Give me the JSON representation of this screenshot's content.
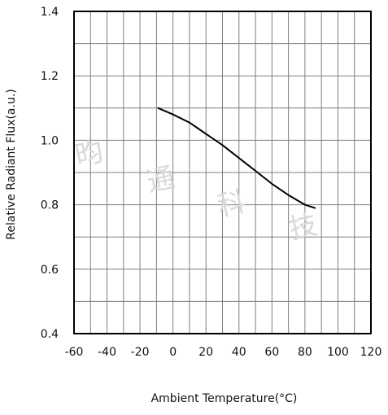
{
  "chart_data": {
    "type": "line",
    "title": "",
    "xlabel": "Ambient Temperature(°C)",
    "ylabel": "Relative Radiant Flux(a.u.)",
    "xlim": [
      -60,
      120
    ],
    "ylim": [
      0.4,
      1.4
    ],
    "x_ticks": [
      "-60",
      "-40",
      "-20",
      "0",
      "20",
      "40",
      "60",
      "80",
      "100",
      "120"
    ],
    "y_ticks": [
      "1.4",
      "1.2",
      "1.0",
      "0.8",
      "0.6",
      "0.4"
    ],
    "grid": true,
    "legend": "none",
    "series": [
      {
        "color": "#000000",
        "points": [
          {
            "x": -9,
            "y": 1.1
          },
          {
            "x": 0,
            "y": 1.08
          },
          {
            "x": 10,
            "y": 1.055
          },
          {
            "x": 20,
            "y": 1.02
          },
          {
            "x": 30,
            "y": 0.985
          },
          {
            "x": 40,
            "y": 0.945
          },
          {
            "x": 50,
            "y": 0.905
          },
          {
            "x": 60,
            "y": 0.865
          },
          {
            "x": 70,
            "y": 0.83
          },
          {
            "x": 80,
            "y": 0.8
          },
          {
            "x": 86,
            "y": 0.79
          }
        ]
      }
    ]
  },
  "watermark": {
    "chars": [
      "昀",
      "通",
      "科",
      "技"
    ]
  }
}
